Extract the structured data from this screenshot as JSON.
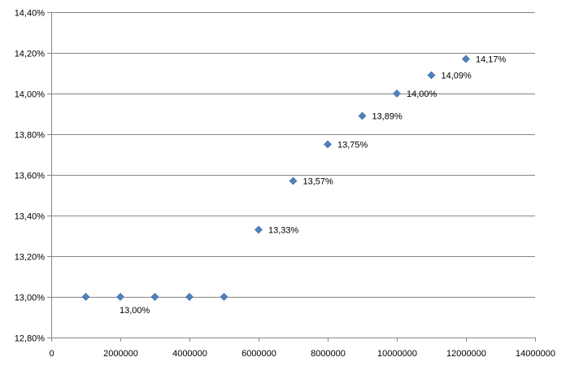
{
  "chart_data": {
    "type": "scatter",
    "title": "",
    "xlabel": "",
    "ylabel": "",
    "xlim": [
      0,
      14000000
    ],
    "ylim": [
      12.8,
      14.4
    ],
    "x_ticks": [
      0,
      2000000,
      4000000,
      6000000,
      8000000,
      10000000,
      12000000,
      14000000
    ],
    "x_tick_labels": [
      "0",
      "2000000",
      "4000000",
      "6000000",
      "8000000",
      "10000000",
      "12000000",
      "14000000"
    ],
    "y_ticks": [
      12.8,
      13.0,
      13.2,
      13.4,
      13.6,
      13.8,
      14.0,
      14.2,
      14.4
    ],
    "y_tick_labels": [
      "12,80%",
      "13,00%",
      "13,20%",
      "13,40%",
      "13,60%",
      "13,80%",
      "14,00%",
      "14,20%",
      "14,40%"
    ],
    "grid": true,
    "legend": "none",
    "marker": "diamond",
    "series": [
      {
        "points": [
          {
            "x": 1000000,
            "y": 13.0
          },
          {
            "x": 2000000,
            "y": 13.0
          },
          {
            "x": 3000000,
            "y": 13.0
          },
          {
            "x": 4000000,
            "y": 13.0
          },
          {
            "x": 5000000,
            "y": 13.0
          },
          {
            "x": 6000000,
            "y": 13.33
          },
          {
            "x": 7000000,
            "y": 13.57
          },
          {
            "x": 8000000,
            "y": 13.75
          },
          {
            "x": 9000000,
            "y": 13.89
          },
          {
            "x": 10000000,
            "y": 14.0
          },
          {
            "x": 11000000,
            "y": 14.09
          },
          {
            "x": 12000000,
            "y": 14.17
          }
        ],
        "data_labels": [
          {
            "x": 2000000,
            "y": 13.0,
            "text": "13,00%",
            "position": "below"
          },
          {
            "x": 6000000,
            "y": 13.33,
            "text": "13,33%",
            "position": "right"
          },
          {
            "x": 7000000,
            "y": 13.57,
            "text": "13,57%",
            "position": "right"
          },
          {
            "x": 8000000,
            "y": 13.75,
            "text": "13,75%",
            "position": "right"
          },
          {
            "x": 9000000,
            "y": 13.89,
            "text": "13,89%",
            "position": "right"
          },
          {
            "x": 10000000,
            "y": 14.0,
            "text": "14,00%",
            "position": "right"
          },
          {
            "x": 11000000,
            "y": 14.09,
            "text": "14,09%",
            "position": "right"
          },
          {
            "x": 12000000,
            "y": 14.17,
            "text": "14,17%",
            "position": "right"
          }
        ]
      }
    ],
    "colors": {
      "marker": "#4F81BD",
      "marker_stroke": "#3B6AA0",
      "gridline": "#878787",
      "axis": "#878787",
      "text": "#000000"
    }
  }
}
